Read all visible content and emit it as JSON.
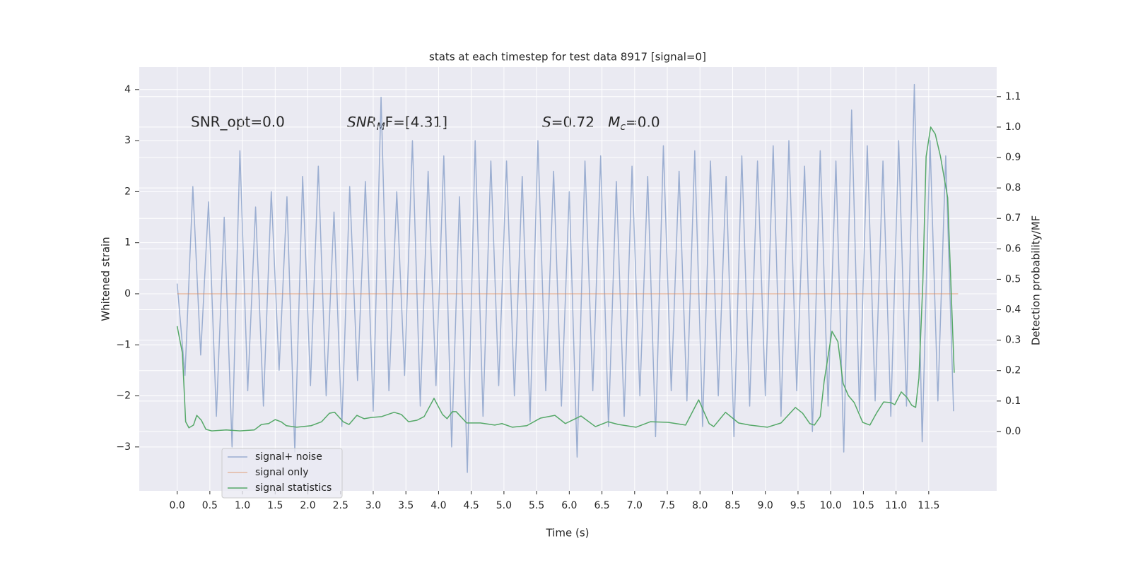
{
  "chart_data": {
    "type": "line",
    "title": "stats at each timestep for test data 8917 [signal=0]",
    "xlabel": "Time (s)",
    "ylabel": "Whitened strain",
    "y2label": "Detection probability/MF",
    "annotations": [
      "SNR_opt=0.0",
      [
        "SNR",
        "M",
        "F=[4.31]"
      ],
      [
        "S",
        "=0.72   ",
        "M",
        "c",
        "=0.0"
      ]
    ],
    "xlim": [
      -0.58,
      12.54
    ],
    "ylim": [
      -3.86,
      4.44
    ],
    "y2lim": [
      -0.195,
      1.197
    ],
    "xticks": [
      {
        "value": 0,
        "label": "0.0"
      },
      0.5,
      {
        "value": 1,
        "label": "1.0"
      },
      1.5,
      {
        "value": 2,
        "label": "2.0"
      },
      2.5,
      {
        "value": 3,
        "label": "3.0"
      },
      3.5,
      {
        "value": 4,
        "label": "4.0"
      },
      4.5,
      {
        "value": 5,
        "label": "5.0"
      },
      5.5,
      {
        "value": 6,
        "label": "6.0"
      },
      6.5,
      {
        "value": 7,
        "label": "7.0"
      },
      7.5,
      {
        "value": 8,
        "label": "8.0"
      },
      8.5,
      {
        "value": 9,
        "label": "9.0"
      },
      9.5,
      {
        "value": 10,
        "label": "10.0"
      },
      10.5,
      {
        "value": 11,
        "label": "11.0"
      },
      11.5
    ],
    "yticks": [
      {
        "value": -3,
        "label": "−3"
      },
      {
        "value": -2,
        "label": "−2"
      },
      {
        "value": -1,
        "label": "−1"
      },
      0,
      1,
      2,
      3,
      4
    ],
    "y2ticks": [
      {
        "value": 0,
        "label": "0.0"
      },
      0.1,
      0.2,
      0.3,
      0.4,
      0.5,
      0.6,
      0.7,
      0.8,
      0.9,
      {
        "value": 1,
        "label": "1.0"
      },
      1.1
    ],
    "grid": true,
    "legend": "lower left",
    "series": [
      {
        "name": "signal+ noise",
        "color": "#4c72b0",
        "alpha": 0.5,
        "x": [
          0,
          0.12,
          0.24,
          0.36,
          0.48,
          0.6,
          0.72,
          0.84,
          0.96,
          1.08,
          1.2,
          1.32,
          1.44,
          1.56,
          1.68,
          1.8,
          1.92,
          2.04,
          2.16,
          2.28,
          2.4,
          2.52,
          2.64,
          2.76,
          2.88,
          3,
          3.12,
          3.24,
          3.36,
          3.48,
          3.6,
          3.72,
          3.84,
          3.96,
          4.08,
          4.2,
          4.32,
          4.44,
          4.56,
          4.68,
          4.8,
          4.92,
          5.04,
          5.16,
          5.28,
          5.4,
          5.52,
          5.64,
          5.76,
          5.88,
          6,
          6.12,
          6.24,
          6.36,
          6.48,
          6.6,
          6.72,
          6.84,
          6.96,
          7.08,
          7.2,
          7.32,
          7.44,
          7.56,
          7.68,
          7.8,
          7.92,
          8.04,
          8.16,
          8.28,
          8.4,
          8.52,
          8.64,
          8.76,
          8.88,
          9,
          9.12,
          9.24,
          9.36,
          9.48,
          9.6,
          9.72,
          9.84,
          9.96,
          10.08,
          10.2,
          10.32,
          10.44,
          10.56,
          10.68,
          10.8,
          10.92,
          11.04,
          11.16,
          11.28,
          11.4,
          11.52,
          11.64,
          11.76,
          11.88
        ],
        "values": [
          0.2,
          -1.6,
          2.1,
          -1.2,
          1.8,
          -2.4,
          1.5,
          -3.0,
          2.8,
          -1.9,
          1.7,
          -2.2,
          2.0,
          -1.5,
          1.9,
          -3.1,
          2.3,
          -1.8,
          2.5,
          -2.0,
          1.6,
          -2.6,
          2.1,
          -1.7,
          2.2,
          -2.3,
          3.85,
          -1.9,
          2.0,
          -1.6,
          3.0,
          -2.2,
          2.4,
          -1.8,
          2.7,
          -3.0,
          1.9,
          -3.5,
          3.0,
          -2.4,
          2.6,
          -1.8,
          2.6,
          -2.0,
          2.3,
          -2.5,
          3.0,
          -1.9,
          2.4,
          -2.2,
          2.0,
          -3.2,
          2.6,
          -1.9,
          2.7,
          -2.6,
          2.2,
          -2.4,
          2.5,
          -2.0,
          2.3,
          -2.8,
          2.9,
          -1.9,
          2.4,
          -2.1,
          2.8,
          -2.6,
          2.6,
          -2.0,
          2.3,
          -2.8,
          2.7,
          -2.2,
          2.6,
          -2.0,
          2.9,
          -2.4,
          3.0,
          -1.9,
          2.5,
          -2.7,
          2.8,
          -2.2,
          2.6,
          -3.1,
          3.6,
          -2.3,
          2.9,
          -2.1,
          2.6,
          -2.4,
          3.0,
          -2.2,
          4.1,
          -2.9,
          3.0,
          -2.1,
          2.7,
          -2.3
        ]
      },
      {
        "name": "signal only",
        "color": "#dd8452",
        "alpha": 0.5,
        "x": [
          0,
          11.95
        ],
        "values": [
          0,
          0
        ]
      },
      {
        "name": "signal statistics",
        "color": "#55a868",
        "axis": "y2",
        "x": [
          0,
          0.08,
          0.13,
          0.18,
          0.25,
          0.3,
          0.37,
          0.44,
          0.53,
          0.75,
          0.96,
          1.18,
          1.29,
          1.4,
          1.5,
          1.59,
          1.67,
          1.83,
          2.05,
          2.21,
          2.33,
          2.41,
          2.54,
          2.63,
          2.75,
          2.86,
          2.97,
          3.13,
          3.32,
          3.43,
          3.54,
          3.67,
          3.78,
          3.93,
          4.06,
          4.13,
          4.21,
          4.27,
          4.43,
          4.64,
          4.86,
          4.97,
          5.13,
          5.35,
          5.56,
          5.78,
          5.94,
          6.18,
          6.4,
          6.59,
          6.75,
          7.02,
          7.24,
          7.51,
          7.78,
          7.98,
          8.14,
          8.21,
          8.39,
          8.59,
          8.76,
          9.03,
          9.24,
          9.46,
          9.57,
          9.68,
          9.75,
          9.84,
          9.9,
          10.02,
          10.11,
          10.19,
          10.27,
          10.36,
          10.49,
          10.6,
          10.7,
          10.81,
          10.92,
          10.98,
          11.08,
          11.17,
          11.24,
          11.3,
          11.35,
          11.41,
          11.46,
          11.53,
          11.6,
          11.68,
          11.79,
          11.89
        ],
        "values": [
          0.346,
          0.258,
          0.032,
          0.012,
          0.021,
          0.053,
          0.037,
          0.007,
          0.002,
          0.005,
          0.002,
          0.005,
          0.023,
          0.026,
          0.039,
          0.032,
          0.019,
          0.014,
          0.019,
          0.032,
          0.06,
          0.063,
          0.032,
          0.023,
          0.053,
          0.042,
          0.046,
          0.049,
          0.063,
          0.056,
          0.032,
          0.037,
          0.049,
          0.109,
          0.056,
          0.042,
          0.065,
          0.065,
          0.028,
          0.028,
          0.021,
          0.026,
          0.014,
          0.019,
          0.044,
          0.053,
          0.026,
          0.051,
          0.016,
          0.032,
          0.023,
          0.014,
          0.032,
          0.03,
          0.021,
          0.104,
          0.026,
          0.016,
          0.063,
          0.028,
          0.021,
          0.014,
          0.028,
          0.079,
          0.06,
          0.026,
          0.021,
          0.049,
          0.165,
          0.329,
          0.295,
          0.158,
          0.118,
          0.095,
          0.03,
          0.021,
          0.06,
          0.097,
          0.095,
          0.088,
          0.13,
          0.111,
          0.086,
          0.079,
          0.176,
          0.49,
          0.903,
          1.0,
          0.977,
          0.903,
          0.768,
          0.193
        ]
      }
    ]
  }
}
